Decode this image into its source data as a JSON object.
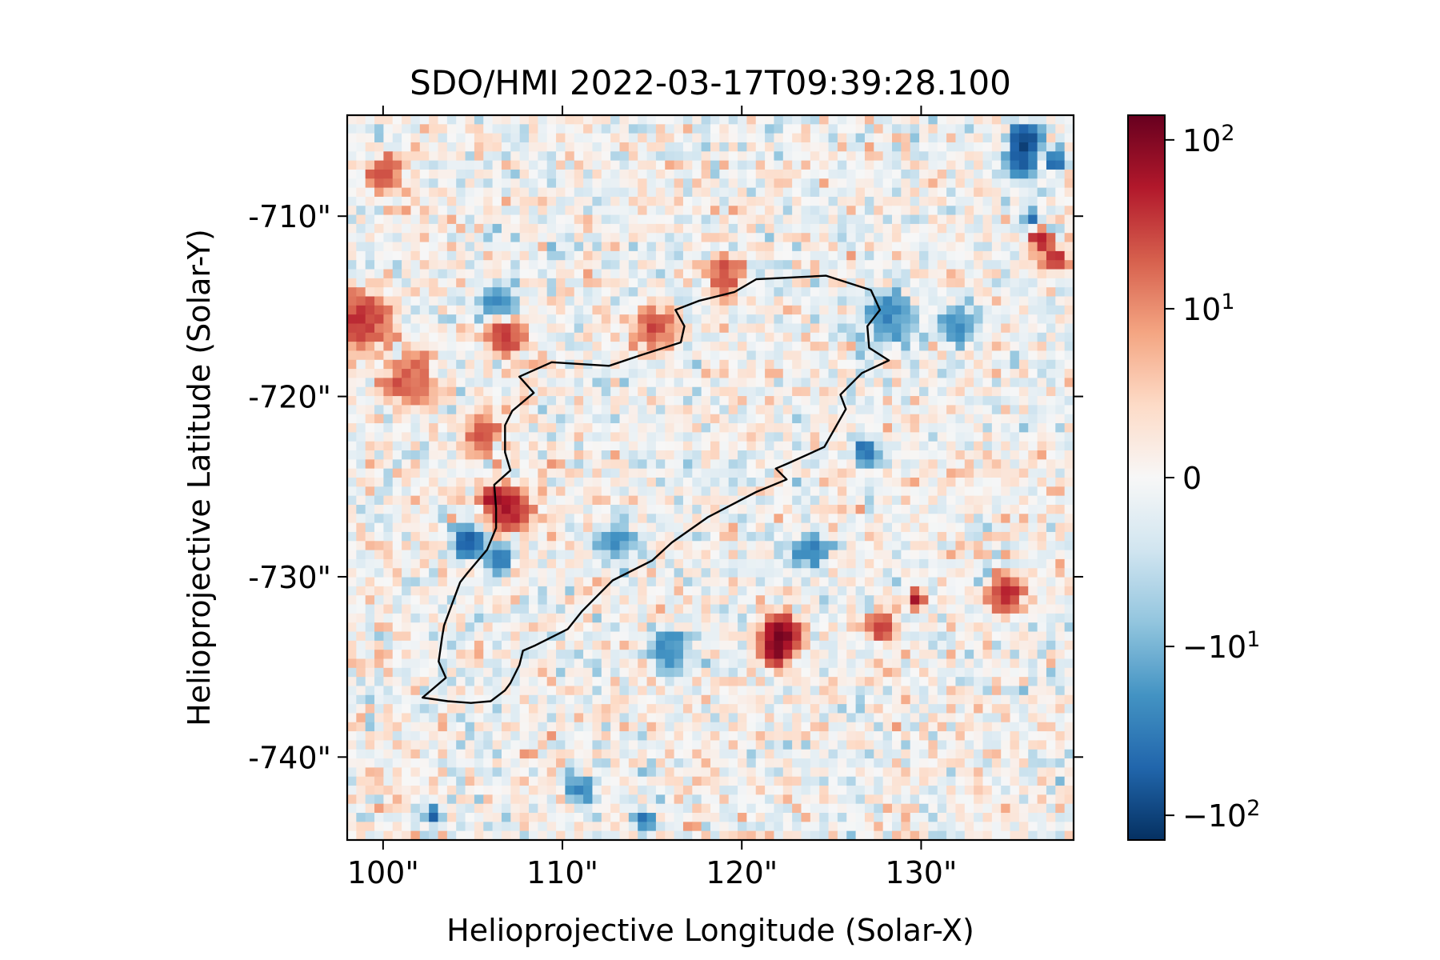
{
  "chart_data": {
    "type": "heatmap",
    "title": "SDO/HMI 2022-03-17T09:39:28.100",
    "xlabel": "Helioprojective Longitude (Solar-X)",
    "ylabel": "Helioprojective Latitude (Solar-Y)",
    "xlim": [
      98,
      138.5
    ],
    "ylim": [
      -744.6,
      -704.4
    ],
    "xticks": [
      100,
      110,
      120,
      130
    ],
    "xtick_labels": [
      "100\"",
      "110\"",
      "120\"",
      "130\""
    ],
    "yticks": [
      -710,
      -720,
      -730,
      -740
    ],
    "ytick_labels": [
      "-710\"",
      "-720\"",
      "-730\"",
      "-740\""
    ],
    "grid": false,
    "colormap": "RdBu_r",
    "colormap_stops": [
      "#053061",
      "#2166ac",
      "#4393c3",
      "#92c5de",
      "#d1e5f0",
      "#f7f7f7",
      "#fddbc7",
      "#f4a582",
      "#d6604d",
      "#b2182b",
      "#67001f"
    ],
    "colorbar": {
      "vmin": -140,
      "vmax": 140,
      "ticks": [
        100,
        10,
        0,
        -10,
        -100
      ],
      "tick_labels": [
        {
          "base": "10",
          "exp": "2"
        },
        {
          "base": "10",
          "exp": "1"
        },
        {
          "base": "0",
          "exp": ""
        },
        {
          "base": "−10",
          "exp": "1"
        },
        {
          "base": "−10",
          "exp": "2"
        }
      ]
    },
    "pixel_grid": {
      "nx": 80,
      "ny": 80,
      "seed": 1729,
      "noise_scale": 7
    },
    "hotspots": [
      {
        "x": 122.2,
        "y": -733.2,
        "value": 115,
        "sigma": 0.55
      },
      {
        "x": 121.9,
        "y": -734.2,
        "value": 95,
        "sigma": 0.4
      },
      {
        "x": 107.1,
        "y": -726.3,
        "value": 55,
        "sigma": 0.7
      },
      {
        "x": 106.1,
        "y": -725.6,
        "value": 60,
        "sigma": 0.35
      },
      {
        "x": 134.8,
        "y": -731.0,
        "value": 45,
        "sigma": 0.55
      },
      {
        "x": 127.7,
        "y": -732.8,
        "value": 40,
        "sigma": 0.45
      },
      {
        "x": 129.7,
        "y": -731.3,
        "value": 55,
        "sigma": 0.3
      },
      {
        "x": 136.6,
        "y": -711.3,
        "value": 55,
        "sigma": 0.35
      },
      {
        "x": 137.4,
        "y": -712.4,
        "value": 48,
        "sigma": 0.4
      },
      {
        "x": 98.9,
        "y": -715.8,
        "value": 38,
        "sigma": 0.9
      },
      {
        "x": 106.8,
        "y": -716.5,
        "value": 35,
        "sigma": 0.7
      },
      {
        "x": 119.0,
        "y": -713.2,
        "value": 28,
        "sigma": 0.6
      },
      {
        "x": 115.0,
        "y": -716.2,
        "value": 22,
        "sigma": 0.8
      },
      {
        "x": 100.0,
        "y": -707.5,
        "value": 25,
        "sigma": 0.6
      },
      {
        "x": 101.5,
        "y": -719.0,
        "value": 22,
        "sigma": 0.9
      },
      {
        "x": 105.5,
        "y": -722.0,
        "value": 20,
        "sigma": 0.7
      },
      {
        "x": 135.8,
        "y": -705.8,
        "value": -100,
        "sigma": 0.5
      },
      {
        "x": 135.5,
        "y": -707.0,
        "value": -55,
        "sigma": 0.5
      },
      {
        "x": 137.5,
        "y": -707.0,
        "value": -60,
        "sigma": 0.3
      },
      {
        "x": 104.8,
        "y": -728.1,
        "value": -65,
        "sigma": 0.5
      },
      {
        "x": 136.2,
        "y": -710.1,
        "value": -60,
        "sigma": 0.25
      },
      {
        "x": 126.9,
        "y": -723.1,
        "value": -45,
        "sigma": 0.45
      },
      {
        "x": 106.4,
        "y": -729.1,
        "value": -38,
        "sigma": 0.45
      },
      {
        "x": 106.4,
        "y": -715.0,
        "value": -22,
        "sigma": 0.7
      },
      {
        "x": 123.8,
        "y": -728.6,
        "value": -28,
        "sigma": 0.6
      },
      {
        "x": 102.8,
        "y": -743.3,
        "value": -55,
        "sigma": 0.3
      },
      {
        "x": 114.5,
        "y": -743.5,
        "value": -40,
        "sigma": 0.35
      },
      {
        "x": 110.9,
        "y": -741.8,
        "value": -25,
        "sigma": 0.5
      },
      {
        "x": 128.2,
        "y": -715.5,
        "value": -25,
        "sigma": 0.9
      },
      {
        "x": 116.0,
        "y": -734.0,
        "value": -25,
        "sigma": 0.7
      },
      {
        "x": 113.0,
        "y": -728.0,
        "value": -22,
        "sigma": 0.6
      },
      {
        "x": 132.0,
        "y": -716.0,
        "value": -22,
        "sigma": 0.7
      }
    ],
    "contour": [
      [
        102.2,
        -736.7
      ],
      [
        103.5,
        -735.6
      ],
      [
        103.1,
        -734.7
      ],
      [
        103.3,
        -733.3
      ],
      [
        103.4,
        -732.7
      ],
      [
        104.3,
        -730.3
      ],
      [
        104.7,
        -729.8
      ],
      [
        105.8,
        -728.5
      ],
      [
        106.3,
        -727.3
      ],
      [
        106.3,
        -726.2
      ],
      [
        106.2,
        -724.9
      ],
      [
        107.1,
        -724.1
      ],
      [
        106.8,
        -723.1
      ],
      [
        106.8,
        -721.6
      ],
      [
        107.2,
        -720.8
      ],
      [
        108.4,
        -719.8
      ],
      [
        107.6,
        -718.9
      ],
      [
        109.4,
        -718.1
      ],
      [
        112.6,
        -718.3
      ],
      [
        114.4,
        -717.7
      ],
      [
        116.6,
        -717.0
      ],
      [
        116.8,
        -716.1
      ],
      [
        116.3,
        -715.2
      ],
      [
        117.6,
        -714.7
      ],
      [
        119.6,
        -714.2
      ],
      [
        120.8,
        -713.5
      ],
      [
        124.7,
        -713.3
      ],
      [
        127.2,
        -714.1
      ],
      [
        127.7,
        -715.2
      ],
      [
        127.0,
        -716.1
      ],
      [
        127.1,
        -717.3
      ],
      [
        128.2,
        -718.0
      ],
      [
        126.7,
        -718.7
      ],
      [
        125.5,
        -719.9
      ],
      [
        125.8,
        -720.7
      ],
      [
        124.6,
        -722.8
      ],
      [
        122.6,
        -723.7
      ],
      [
        121.9,
        -724.0
      ],
      [
        122.5,
        -724.6
      ],
      [
        120.8,
        -725.3
      ],
      [
        118.1,
        -726.7
      ],
      [
        116.1,
        -728.1
      ],
      [
        115.0,
        -729.1
      ],
      [
        112.8,
        -730.2
      ],
      [
        111.1,
        -731.9
      ],
      [
        110.3,
        -732.9
      ],
      [
        108.5,
        -733.8
      ],
      [
        107.8,
        -734.1
      ],
      [
        107.6,
        -734.9
      ],
      [
        107.1,
        -735.9
      ],
      [
        106.8,
        -736.3
      ],
      [
        106.0,
        -736.9
      ],
      [
        104.9,
        -737.0
      ],
      [
        103.6,
        -736.9
      ],
      [
        102.2,
        -736.7
      ]
    ]
  }
}
